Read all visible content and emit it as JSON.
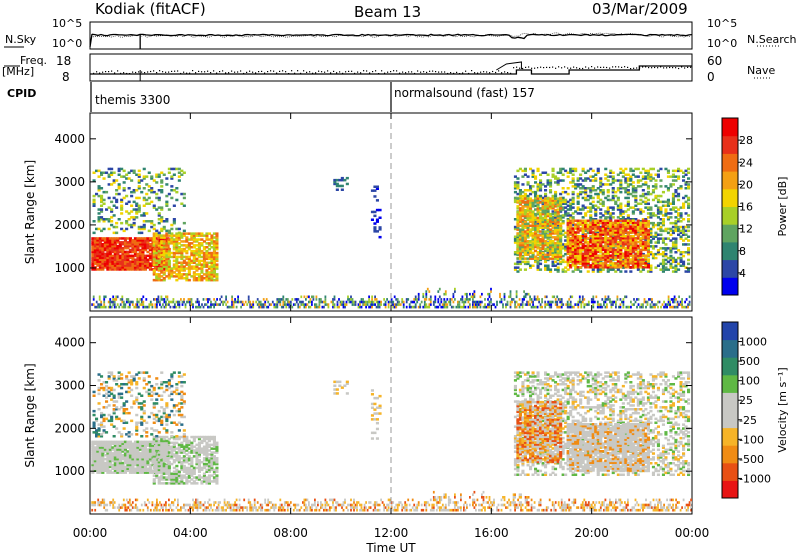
{
  "header": {
    "title": "Kodiak (fitACF)",
    "beam": "Beam 13",
    "date": "03/Mar/2009"
  },
  "side_labels": {
    "nsky": "N.Sky",
    "nsearch": "N.Search",
    "freq": "Freq.",
    "freq_unit": "[MHz]",
    "nave": "Nave",
    "cpid": "CPID"
  },
  "cpid_labels": [
    "themis 3300",
    "normalsound (fast) 157"
  ],
  "chart_data": [
    {
      "type": "line",
      "name": "noise-panel",
      "series": [
        {
          "name": "N.Sky"
        },
        {
          "name": "N.Search"
        }
      ],
      "y_left_ticks": [
        "10^5",
        "10^0"
      ],
      "y_right_ticks": [
        "10^5",
        "10^0"
      ]
    },
    {
      "type": "line",
      "name": "freq-nave-panel",
      "series": [
        {
          "name": "Freq."
        },
        {
          "name": "Nave"
        }
      ],
      "y_left_ticks": [
        18,
        8
      ],
      "y_right_ticks": [
        60,
        0
      ]
    },
    {
      "type": "heatmap",
      "name": "power-panel",
      "ylabel": "Slant Range [km]",
      "yticks": [
        1000,
        2000,
        3000,
        4000
      ],
      "ylim": [
        0,
        4600
      ],
      "colorbar_label": "Power [dB]",
      "colorbar_ticks": [
        4,
        8,
        12,
        16,
        20,
        24,
        28
      ],
      "colorbar_colors": [
        "#0000ee",
        "#2c46a6",
        "#2f8470",
        "#5fa460",
        "#a8d028",
        "#f2d400",
        "#f4a014",
        "#ef6c12",
        "#e8301a",
        "#ee0000"
      ]
    },
    {
      "type": "heatmap",
      "name": "velocity-panel",
      "ylabel": "Slant Range [km]",
      "yticks": [
        1000,
        2000,
        3000,
        4000
      ],
      "ylim": [
        0,
        4600
      ],
      "xlabel": "Time UT",
      "xticks": [
        "00:00",
        "04:00",
        "08:00",
        "12:00",
        "16:00",
        "20:00",
        "00:00"
      ],
      "colorbar_label": "Velocity [m s⁻¹]",
      "colorbar_ticks": [
        "1000",
        "500",
        "100",
        "25",
        "-25",
        "-100",
        "-500",
        "-1000"
      ],
      "colorbar_colors": [
        "#2244aa",
        "#2a6e8a",
        "#2f8c64",
        "#5fb844",
        "#c8c8c4",
        "#c8c8c4",
        "#f6b428",
        "#f08c14",
        "#e85014",
        "#e81414"
      ]
    }
  ]
}
